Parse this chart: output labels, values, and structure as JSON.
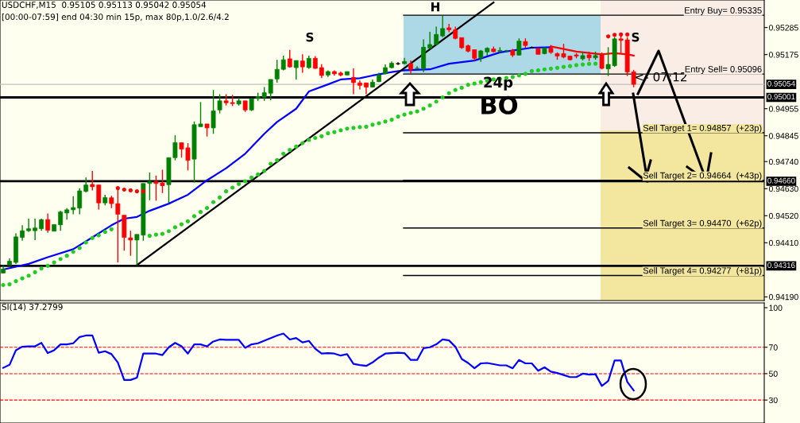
{
  "chart_data": [
    {
      "type": "candlestick",
      "title": "USDCHF,M15  0.95105 0.95113 0.95042 0.95054",
      "subtitle": "[00:00-07:59] end 04:30 min 15p, max 80p,1.0/2.6/4.2",
      "categories": [
        null,
        null,
        null,
        null,
        null,
        null,
        null,
        null,
        null,
        null,
        null,
        null,
        null,
        null,
        null,
        null,
        null,
        null,
        null,
        null,
        null,
        null,
        null,
        null,
        null,
        null,
        null,
        null,
        null,
        null,
        null,
        null,
        null,
        null,
        null,
        null,
        null,
        null,
        null,
        null,
        null,
        null,
        null,
        null,
        null,
        null,
        null,
        null,
        null,
        null,
        null,
        null,
        null,
        null,
        null,
        null,
        null,
        null,
        null,
        null,
        null,
        null,
        null,
        null,
        null,
        null,
        null,
        null,
        null,
        null,
        null,
        null,
        null,
        null,
        null,
        null,
        null,
        null,
        null,
        null,
        null,
        null,
        null,
        null,
        null,
        null,
        null,
        null,
        null,
        null,
        null,
        null,
        null,
        null,
        null,
        null,
        null,
        null,
        null,
        null,
        null,
        null,
        null,
        null,
        null,
        null,
        null,
        null,
        null,
        null,
        null,
        null,
        null,
        null,
        null,
        null,
        null,
        null,
        null,
        null
      ],
      "ohlc": [
        [
          0.94287,
          0.94319,
          0.94285,
          0.94303
        ],
        [
          0.94319,
          0.94346,
          0.94319,
          0.94335
        ],
        [
          0.9433,
          0.94448,
          0.94324,
          0.94434
        ],
        [
          0.94432,
          0.94481,
          0.94418,
          0.94459
        ],
        [
          0.94459,
          0.94508,
          0.94454,
          0.94467
        ],
        [
          0.94459,
          0.94508,
          0.94421,
          0.9447
        ],
        [
          0.94467,
          0.94508,
          0.94459,
          0.94504
        ],
        [
          0.94504,
          0.94529,
          0.94451,
          0.94461
        ],
        [
          0.94457,
          0.94484,
          0.94457,
          0.94484
        ],
        [
          0.94483,
          0.9454,
          0.94459,
          0.94535
        ],
        [
          0.94531,
          0.94551,
          0.94504,
          0.94544
        ],
        [
          0.94544,
          0.94599,
          0.94526,
          0.94553
        ],
        [
          0.94551,
          0.94632,
          0.94526,
          0.94621
        ],
        [
          0.94619,
          0.94675,
          0.94615,
          0.94645
        ],
        [
          0.94647,
          0.94702,
          0.94623,
          0.94638
        ],
        [
          0.94645,
          0.94645,
          0.94545,
          0.94572
        ],
        [
          0.94572,
          0.94605,
          0.94562,
          0.94594
        ],
        [
          0.94593,
          0.94601,
          0.94551,
          0.94569
        ],
        [
          0.94569,
          0.94626,
          0.9433,
          0.94526
        ],
        [
          0.94522,
          0.94522,
          0.94378,
          0.94432
        ],
        [
          0.9443,
          0.94459,
          0.94357,
          0.94421
        ],
        [
          0.94421,
          0.94444,
          0.94319,
          0.94444
        ],
        [
          0.94441,
          0.94651,
          0.94418,
          0.94651
        ],
        [
          0.94651,
          0.94696,
          0.94583,
          0.94659
        ],
        [
          0.94659,
          0.94683,
          0.94581,
          0.94651
        ],
        [
          0.94653,
          0.94707,
          0.94612,
          0.94642
        ],
        [
          0.94646,
          0.94756,
          0.94572,
          0.94756
        ],
        [
          0.94756,
          0.94847,
          0.94745,
          0.94817
        ],
        [
          0.94817,
          0.94817,
          0.94756,
          0.94791
        ],
        [
          0.94796,
          0.94815,
          0.94704,
          0.94745
        ],
        [
          0.9475,
          0.94903,
          0.94655,
          0.9489
        ],
        [
          0.94882,
          0.94982,
          0.94882,
          0.94893
        ],
        [
          0.94893,
          0.94893,
          0.94842,
          0.94877
        ],
        [
          0.94877,
          0.95031,
          0.94853,
          0.94946
        ],
        [
          0.9495,
          0.95014,
          0.94936,
          0.94987
        ],
        [
          0.94987,
          0.95014,
          0.94968,
          0.94979
        ],
        [
          0.9498,
          0.95011,
          0.94966,
          0.94976
        ],
        [
          0.94974,
          0.95,
          0.94968,
          0.94987
        ],
        [
          0.94987,
          0.94987,
          0.94942,
          0.9495
        ],
        [
          0.9495,
          0.94998,
          0.94946,
          0.94996
        ],
        [
          0.94996,
          0.9502,
          0.94987,
          0.95004
        ],
        [
          0.95001,
          0.95043,
          0.94987,
          0.9502
        ],
        [
          0.95018,
          0.95074,
          0.9499,
          0.95074
        ],
        [
          0.95076,
          0.95154,
          0.95061,
          0.95115
        ],
        [
          0.95115,
          0.95171,
          0.95111,
          0.95154
        ],
        [
          0.95158,
          0.95194,
          0.95122,
          0.95125
        ],
        [
          0.95122,
          0.95151,
          0.95074,
          0.95151
        ],
        [
          0.95149,
          0.95176,
          0.95101,
          0.95125
        ],
        [
          0.95122,
          0.95171,
          0.95117,
          0.9516
        ],
        [
          0.9516,
          0.95169,
          0.95117,
          0.95119
        ],
        [
          0.95122,
          0.95136,
          0.95079,
          0.9509
        ],
        [
          0.95092,
          0.95111,
          0.95084,
          0.95106
        ],
        [
          0.95106,
          0.95111,
          0.9509,
          0.95097
        ],
        [
          0.951,
          0.95106,
          0.95087,
          0.95092
        ],
        [
          0.95092,
          0.95106,
          0.95092,
          0.95106
        ],
        [
          0.95082,
          0.95119,
          0.95014,
          0.95061
        ],
        [
          0.9506,
          0.9507,
          0.95033,
          0.9505
        ],
        [
          0.9506,
          0.9506,
          0.95014,
          0.95043
        ],
        [
          0.95043,
          0.95074,
          0.95041,
          0.95063
        ],
        [
          0.95065,
          0.95101,
          0.95063,
          0.95093
        ],
        [
          0.95097,
          0.95135,
          0.95095,
          0.95122
        ],
        [
          0.95122,
          0.95147,
          0.95119,
          0.9514
        ],
        [
          0.95138,
          0.95144,
          0.95133,
          0.95138
        ],
        [
          0.95138,
          0.95162,
          0.95136,
          0.95147
        ],
        [
          0.95138,
          0.95151,
          0.95097,
          0.95115
        ],
        [
          0.95119,
          0.95128,
          0.95117,
          0.95119
        ],
        [
          0.95119,
          0.95237,
          0.95104,
          0.95205
        ],
        [
          0.95201,
          0.95268,
          0.95198,
          0.95216
        ],
        [
          0.95216,
          0.95289,
          0.95214,
          0.95257
        ],
        [
          0.95251,
          0.95332,
          0.95246,
          0.95281
        ],
        [
          0.95284,
          0.953,
          0.95266,
          0.95276
        ],
        [
          0.95276,
          0.95289,
          0.95237,
          0.95241
        ],
        [
          0.95244,
          0.95244,
          0.95198,
          0.95203
        ],
        [
          0.95211,
          0.95216,
          0.95184,
          0.95189
        ],
        [
          0.95195,
          0.95195,
          0.95151,
          0.9516
        ],
        [
          0.95162,
          0.95194,
          0.95146,
          0.9519
        ],
        [
          0.95186,
          0.95205,
          0.95171,
          0.95201
        ],
        [
          0.95198,
          0.95208,
          0.95184,
          0.95187
        ],
        [
          0.95189,
          0.95205,
          0.95184,
          0.95192
        ],
        [
          0.9519,
          0.95194,
          0.95186,
          0.9519
        ],
        [
          0.95192,
          0.95198,
          0.95165,
          0.95173
        ],
        [
          0.95173,
          0.95241,
          0.95171,
          0.9523
        ],
        [
          0.95228,
          0.95241,
          0.95203,
          0.95212
        ],
        [
          0.95203,
          0.95208,
          0.952,
          0.95203
        ],
        [
          0.952,
          0.952,
          0.95176,
          0.95176
        ],
        [
          0.95179,
          0.95205,
          0.95176,
          0.95201
        ],
        [
          0.95201,
          0.95214,
          0.95178,
          0.95184
        ],
        [
          0.95179,
          0.95184,
          0.95154,
          0.95169
        ],
        [
          0.95179,
          0.95219,
          0.9516,
          0.95165
        ],
        [
          0.95169,
          0.95171,
          0.95151,
          0.95154
        ],
        [
          0.95174,
          0.95181,
          0.9516,
          0.95169
        ],
        [
          0.95158,
          0.95187,
          0.95151,
          0.95171
        ],
        [
          0.95174,
          0.95187,
          0.95149,
          0.95162
        ],
        [
          0.95162,
          0.95187,
          0.95154,
          0.95171
        ],
        [
          0.95176,
          0.95184,
          0.95115,
          0.95119
        ],
        [
          0.95117,
          0.95205,
          0.95088,
          0.95135
        ],
        [
          0.9513,
          0.95246,
          0.95125,
          0.95239
        ],
        [
          0.95239,
          0.95259,
          0.95181,
          0.95233
        ],
        [
          0.95235,
          0.95246,
          0.95088,
          0.95104
        ],
        [
          0.95105,
          0.95113,
          0.95042,
          0.95054
        ],
        null,
        null,
        null,
        null,
        null,
        null,
        null,
        null,
        null,
        null,
        null,
        null,
        null,
        null,
        null,
        null,
        null,
        null,
        null,
        null
      ],
      "colors": [
        "#008000",
        "#008000",
        "#008000",
        "#008000",
        "#008000",
        "#008000",
        "#008000",
        "#ff0000",
        "#008000",
        "#008000",
        "#008000",
        "#008000",
        "#008000",
        "#008000",
        "#ff0000",
        "#ff0000",
        "#008000",
        "#ff0000",
        "#ff0000",
        "#ff0000",
        "#ff0000",
        "#008000",
        "#008000",
        "#008000",
        "#ff0000",
        "#ff0000",
        "#008000",
        "#008000",
        "#ff0000",
        "#ff0000",
        "#008000",
        "#008000",
        "#ff0000",
        "#008000",
        "#008000",
        "#ff0000",
        "#ff0000",
        "#008000",
        "#ff0000",
        "#008000",
        "#008000",
        "#008000",
        "#008000",
        "#008000",
        "#008000",
        "#ff0000",
        "#008000",
        "#ff0000",
        "#008000",
        "#ff0000",
        "#ff0000",
        "#008000",
        "#ff0000",
        "#ff0000",
        "#008000",
        "#ff0000",
        "#ff0000",
        "#ff0000",
        "#008000",
        "#008000",
        "#008000",
        "#008000",
        "#000000",
        "#008000",
        "#ff0000",
        "#008000",
        "#008000",
        "#008000",
        "#008000",
        "#008000",
        "#ff0000",
        "#ff0000",
        "#ff0000",
        "#ff0000",
        "#ff0000",
        "#008000",
        "#008000",
        "#ff0000",
        "#008000",
        "#008000",
        "#ff0000",
        "#008000",
        "#ff0000",
        "#000000",
        "#ff0000",
        "#008000",
        "#ff0000",
        "#ff0000",
        "#ff0000",
        "#ff0000",
        "#ff0000",
        "#008000",
        "#ff0000",
        "#008000",
        "#ff0000",
        "#008000",
        "#008000",
        "#ff0000",
        "#ff0000",
        "#ff0000",
        null,
        null,
        null,
        null,
        null,
        null,
        null,
        null,
        null,
        null,
        null,
        null,
        null,
        null,
        null,
        null,
        null,
        null,
        null,
        null
      ],
      "series": [
        {
          "type": "line",
          "color": "#0000ff",
          "values": [
            0.94301,
            null,
            null,
            null,
            0.94324,
            null,
            null,
            0.94351,
            null,
            null,
            null,
            0.94384,
            null,
            null,
            0.94432,
            null,
            null,
            0.94481,
            null,
            0.94508,
            null,
            0.94515,
            null,
            0.9454,
            null,
            null,
            0.94569,
            null,
            null,
            0.94605,
            null,
            null,
            0.94664,
            null,
            null,
            0.94713,
            null,
            null,
            0.94772,
            null,
            null,
            0.94853,
            null,
            0.94901,
            null,
            null,
            0.94955,
            null,
            0.95025,
            null,
            null,
            0.95054,
            null,
            0.95074,
            null,
            null,
            0.95079,
            null,
            0.9509,
            null,
            null,
            0.95104,
            null,
            0.95111,
            null,
            null,
            null,
            0.95115,
            null,
            null,
            0.95138,
            null,
            null,
            null,
            0.95151,
            null,
            null,
            null,
            0.95184,
            null,
            null,
            null,
            null,
            0.95203,
            null,
            null,
            0.95205,
            null,
            null,
            null,
            null,
            null,
            null,
            null,
            null,
            null,
            null,
            null,
            null,
            null,
            null,
            null,
            null,
            null,
            null,
            null,
            null,
            null,
            null,
            null,
            null,
            null,
            null,
            null,
            null,
            null,
            null,
            null,
            null,
            null
          ]
        },
        {
          "type": "line",
          "color": "#ff0000",
          "values": [
            null,
            null,
            null,
            null,
            null,
            null,
            null,
            null,
            null,
            null,
            null,
            null,
            null,
            null,
            null,
            null,
            null,
            null,
            null,
            null,
            null,
            null,
            null,
            null,
            null,
            null,
            null,
            null,
            null,
            null,
            null,
            null,
            null,
            null,
            null,
            null,
            null,
            null,
            null,
            null,
            null,
            null,
            null,
            null,
            null,
            null,
            null,
            null,
            null,
            null,
            null,
            null,
            null,
            null,
            null,
            null,
            null,
            null,
            null,
            null,
            null,
            null,
            null,
            null,
            null,
            null,
            null,
            null,
            null,
            null,
            null,
            null,
            null,
            null,
            null,
            null,
            null,
            null,
            null,
            null,
            null,
            null,
            null,
            null,
            null,
            null,
            0.95208,
            null,
            null,
            null,
            0.95187,
            null,
            null,
            null,
            0.95176,
            null,
            0.95181,
            null,
            0.95176,
            0.95171,
            null,
            null,
            null,
            null,
            null,
            null,
            null,
            null,
            null,
            null,
            null,
            null,
            null,
            null,
            null,
            null,
            null,
            null,
            null,
            null
          ]
        },
        {
          "type": "scatter",
          "color": "#22cc22",
          "marker": "circle",
          "values": [
            0.94238,
            0.94241,
            0.94254,
            0.94265,
            0.94276,
            0.9429,
            0.94305,
            0.94316,
            0.9433,
            0.94344,
            0.94357,
            0.94373,
            0.94389,
            0.94411,
            0.94429,
            0.9444,
            0.94454,
            0.94465,
            null,
            null,
            null,
            null,
            null,
            0.94438,
            0.94443,
            0.94446,
            0.94457,
            0.94473,
            0.94485,
            0.94497,
            0.94518,
            0.94535,
            0.94551,
            0.94575,
            0.94594,
            0.94619,
            0.94634,
            0.94649,
            0.9466,
            0.94675,
            0.94688,
            0.94702,
            0.94731,
            0.94746,
            0.94772,
            0.94787,
            0.94801,
            0.94815,
            0.94828,
            0.94836,
            0.94843,
            0.94855,
            0.9486,
            0.94867,
            0.94874,
            0.94877,
            0.9488,
            0.94882,
            0.9489,
            0.94896,
            0.94903,
            0.9491,
            0.94923,
            0.94931,
            0.94938,
            0.94944,
            0.94955,
            0.94968,
            0.94984,
            0.95001,
            0.95018,
            0.95031,
            0.9504,
            0.95052,
            0.95057,
            0.95063,
            0.95068,
            0.95074,
            0.95076,
            0.9508,
            0.95084,
            0.9509,
            0.95097,
            0.95108,
            0.95111,
            0.95115,
            0.95118,
            0.95121,
            0.95125,
            0.95128,
            0.95132,
            0.95135,
            0.95137,
            0.95138,
            null,
            null,
            null,
            null,
            null,
            null,
            null,
            null,
            null,
            null,
            null,
            null,
            null,
            null,
            null,
            null,
            null,
            null,
            null,
            null,
            null,
            null,
            null,
            null,
            null,
            null
          ]
        },
        {
          "type": "scatter",
          "color": "#ff0000",
          "marker": "circle",
          "values": [
            null,
            null,
            null,
            null,
            null,
            null,
            null,
            null,
            null,
            null,
            null,
            null,
            null,
            null,
            null,
            null,
            null,
            null,
            0.94632,
            0.94626,
            0.94623,
            0.94619,
            0.94619,
            null,
            null,
            null,
            null,
            null,
            null,
            null,
            null,
            null,
            null,
            null,
            null,
            null,
            null,
            null,
            null,
            null,
            null,
            null,
            null,
            null,
            null,
            null,
            null,
            null,
            null,
            null,
            null,
            null,
            null,
            null,
            null,
            null,
            null,
            null,
            null,
            null,
            null,
            null,
            null,
            null,
            null,
            null,
            null,
            null,
            null,
            null,
            null,
            null,
            null,
            null,
            null,
            null,
            null,
            null,
            null,
            null,
            null,
            null,
            null,
            null,
            null,
            null,
            null,
            null,
            null,
            null,
            null,
            null,
            null,
            null,
            null,
            0.95249,
            0.95255,
            0.95257,
            0.95257,
            null,
            null,
            null,
            null,
            null,
            null,
            null,
            null,
            null,
            null,
            null,
            null,
            null,
            null,
            null,
            null,
            null,
            null,
            null,
            null,
            null
          ]
        },
        {
          "type": "line",
          "color": "#000000",
          "values": [
            null,
            null,
            null,
            null,
            null,
            null,
            null,
            null,
            null,
            null,
            null,
            null,
            null,
            null,
            null,
            null,
            null,
            null,
            null,
            null,
            null,
            0.94319,
            null,
            null,
            null,
            null,
            null,
            null,
            null,
            null,
            null,
            null,
            null,
            null,
            null,
            null,
            null,
            null,
            null,
            null,
            null,
            null,
            null,
            null,
            null,
            null,
            null,
            null,
            null,
            null,
            null,
            null,
            null,
            null,
            null,
            null,
            null,
            null,
            null,
            null,
            null,
            null,
            null,
            null,
            null,
            null,
            null,
            null,
            null,
            null,
            null,
            null,
            null,
            null,
            null,
            null,
            null,
            0.95387,
            null,
            null,
            null,
            null,
            null,
            null,
            null,
            null,
            null,
            null,
            null,
            null,
            null,
            null,
            null,
            null,
            null,
            null,
            null,
            null,
            null,
            null,
            null,
            null,
            null,
            null,
            null,
            null,
            null,
            null,
            null,
            null,
            null,
            null,
            null,
            null,
            null,
            null,
            null,
            null,
            null,
            null
          ]
        }
      ],
      "ylim": [
        0.94175,
        0.95397
      ],
      "yticks": [
        0.95285,
        0.95175,
        0.94955,
        0.94845,
        {
          "value": 0.9474,
          "label": "0.94740"
        },
        {
          "value": 0.9463,
          "label": "0.94630"
        },
        {
          "value": 0.9452,
          "label": "0.94520"
        },
        {
          "value": 0.9441,
          "label": "0.94410"
        },
        {
          "value": 0.9419,
          "label": "0.94190"
        }
      ],
      "tick_labels": "y",
      "ref_lines": [
        {
          "axis": "y",
          "value": 0.95335,
          "label": "Entry Buy= 0.95335"
        },
        {
          "axis": "y",
          "value": 0.95096,
          "label": "Entry Sell= 0.95096"
        },
        {
          "axis": "y",
          "value": 0.94857,
          "label": "Sell Target 1= 0.94857  (+23p)"
        },
        {
          "axis": "y",
          "value": 0.94664,
          "label": "Sell Target 2= 0.94664  (+43p)"
        },
        {
          "axis": "y",
          "value": 0.9447,
          "label": "Sell Target 3= 0.94470  (+62p)"
        },
        {
          "axis": "y",
          "value": 0.94277,
          "label": "Sell Target 4= 0.94277  (+81p)"
        },
        {
          "axis": "y",
          "value": 0.95054,
          "label": "0.95054",
          "color": "#c0c0c0"
        },
        {
          "axis": "y",
          "value": 0.95001,
          "label": "0.95001",
          "color": "#000000"
        },
        {
          "axis": "y",
          "value": 0.9466,
          "label": "0.94660",
          "color": "#000000"
        },
        {
          "axis": "y",
          "value": 0.94316,
          "label": "0.94316",
          "color": "#000000"
        }
      ],
      "annotations": [
        "S",
        "H",
        "S",
        "24p",
        "BO",
        "<- 07:12"
      ]
    },
    {
      "type": "line",
      "title": "SI(14) 37.2799",
      "categories": [
        null,
        null,
        null,
        null,
        null,
        null,
        null,
        null,
        null,
        null,
        null,
        null,
        null,
        null,
        null,
        null,
        null,
        null,
        null,
        null,
        null,
        null,
        null,
        null,
        null,
        null,
        null,
        null,
        null,
        null,
        null,
        null,
        null,
        null,
        null,
        null,
        null,
        null,
        null,
        null,
        null,
        null,
        null,
        null,
        null,
        null,
        null,
        null,
        null,
        null,
        null,
        null,
        null,
        null,
        null,
        null,
        null,
        null,
        null,
        null,
        null,
        null,
        null,
        null,
        null,
        null,
        null,
        null,
        null,
        null,
        null,
        null,
        null,
        null,
        null,
        null,
        null,
        null,
        null,
        null,
        null,
        null,
        null,
        null,
        null,
        null,
        null,
        null,
        null,
        null,
        null,
        null,
        null,
        null,
        null,
        null,
        null,
        null,
        null,
        null,
        null,
        null,
        null,
        null,
        null,
        null,
        null,
        null,
        null,
        null,
        null,
        null,
        null,
        null,
        null,
        null,
        null,
        null,
        null,
        null
      ],
      "series": [
        {
          "color": "#0000ff",
          "values": [
            54.4,
            56.7,
            67.8,
            70.4,
            70.7,
            70.7,
            73.3,
            65.6,
            67.8,
            72.2,
            72.2,
            73.0,
            77.8,
            78.9,
            78.9,
            65.9,
            67.0,
            64.8,
            58.5,
            45.2,
            45.2,
            47.0,
            65.2,
            65.2,
            65.2,
            64.1,
            70.0,
            73.3,
            70.7,
            65.2,
            72.2,
            72.2,
            70.7,
            74.4,
            75.9,
            75.6,
            75.6,
            75.6,
            69.6,
            72.2,
            73.0,
            75.0,
            76.9,
            78.9,
            80.4,
            75.9,
            77.0,
            73.7,
            74.8,
            68.9,
            65.2,
            65.6,
            65.2,
            63.7,
            64.8,
            57.4,
            56.5,
            55.9,
            58.5,
            62.2,
            65.2,
            65.5,
            65.9,
            65.6,
            60.4,
            60.4,
            69.3,
            70.0,
            72.2,
            75.9,
            75.2,
            70.4,
            61.1,
            58.1,
            54.1,
            57.8,
            58.1,
            57.2,
            56.3,
            56.3,
            54.1,
            60.4,
            57.8,
            57.8,
            52.2,
            54.8,
            51.5,
            50.5,
            49.0,
            47.4,
            47.4,
            50.0,
            49.3,
            49.6,
            40.7,
            44.4,
            60.0,
            60.0,
            43.7,
            37.3,
            null,
            null,
            null,
            null,
            null,
            null,
            null,
            null,
            null,
            null,
            null,
            null,
            null,
            null,
            null,
            null,
            null,
            null,
            null,
            null
          ]
        }
      ],
      "ylim": [
        12.6,
        103.6
      ],
      "yticks": [
        30,
        50,
        70,
        100
      ],
      "tick_labels": "y",
      "ref_lines": [
        {
          "axis": "y",
          "value": 70,
          "color": "#ff0000",
          "line_style": "dashed"
        },
        {
          "axis": "y",
          "value": 50,
          "color": "#ff0000",
          "line_style": "dashed"
        },
        {
          "axis": "y",
          "value": 30,
          "color": "#ff0000",
          "line_style": "dashed"
        }
      ]
    }
  ]
}
